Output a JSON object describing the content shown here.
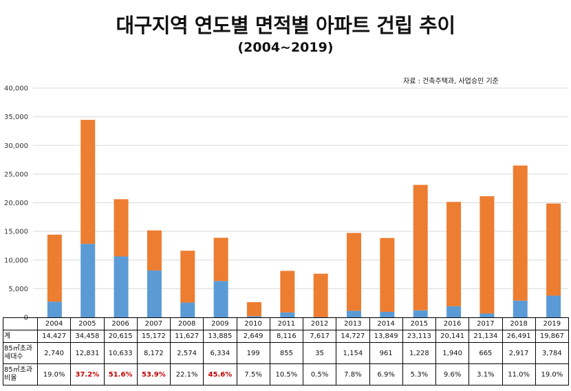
{
  "title": "대구지역 연도별 면적별 아파트 건립 추이",
  "subtitle": "(2004~2019)",
  "source_note": "자료 : 건축주택과, 사업승인 기준",
  "colors": {
    "large": "#5b9bd5",
    "small": "#ed7d31",
    "highlight": "#c00000",
    "grid": "#d9d9d9"
  },
  "chart_data": {
    "type": "bar",
    "stacked": true,
    "categories": [
      "2004",
      "2005",
      "2006",
      "2007",
      "2008",
      "2009",
      "2010",
      "2011",
      "2012",
      "2013",
      "2014",
      "2015",
      "2016",
      "2017",
      "2018",
      "2019"
    ],
    "series": [
      {
        "values": [
          2740,
          12831,
          10633,
          8172,
          2574,
          6334,
          199,
          855,
          35,
          1154,
          961,
          1228,
          1940,
          665,
          2917,
          3784
        ]
      },
      {
        "values": [
          11687,
          21627,
          9982,
          7000,
          9053,
          7551,
          2450,
          7261,
          7582,
          13573,
          12888,
          21885,
          18201,
          20469,
          23574,
          16083
        ]
      }
    ],
    "ylim": [
      0,
      40000
    ],
    "yticks": [
      0,
      5000,
      10000,
      15000,
      20000,
      25000,
      30000,
      35000,
      40000
    ],
    "ytick_labels": [
      "0",
      "5,000",
      "10,000",
      "15,000",
      "20,000",
      "25,000",
      "30,000",
      "35,000",
      "40,000"
    ],
    "grid": true
  },
  "table": {
    "row_labels": [
      "계",
      "85㎡초과 세대수",
      "85㎡초과 비율"
    ],
    "years": [
      "2004",
      "2005",
      "2006",
      "2007",
      "2008",
      "2009",
      "2010",
      "2011",
      "2012",
      "2013",
      "2014",
      "2015",
      "2016",
      "2017",
      "2018",
      "2019"
    ],
    "totals": [
      "14,427",
      "34,458",
      "20,615",
      "15,172",
      "11,627",
      "13,885",
      "2,649",
      "8,116",
      "7,617",
      "14,727",
      "13,849",
      "23,113",
      "20,141",
      "21,134",
      "26,491",
      "19,867"
    ],
    "large_units": [
      "2,740",
      "12,831",
      "10,633",
      "8,172",
      "2,574",
      "6,334",
      "199",
      "855",
      "35",
      "1,154",
      "961",
      "1,228",
      "1,940",
      "665",
      "2,917",
      "3,784"
    ],
    "ratios": [
      "19.0%",
      "37.2%",
      "51.6%",
      "53.9%",
      "22.1%",
      "45.6%",
      "7.5%",
      "10.5%",
      "0.5%",
      "7.8%",
      "6.9%",
      "5.3%",
      "9.6%",
      "3.1%",
      "11.0%",
      "19.0%"
    ],
    "highlighted_ratios": [
      "2005",
      "2006",
      "2007",
      "2009"
    ]
  }
}
